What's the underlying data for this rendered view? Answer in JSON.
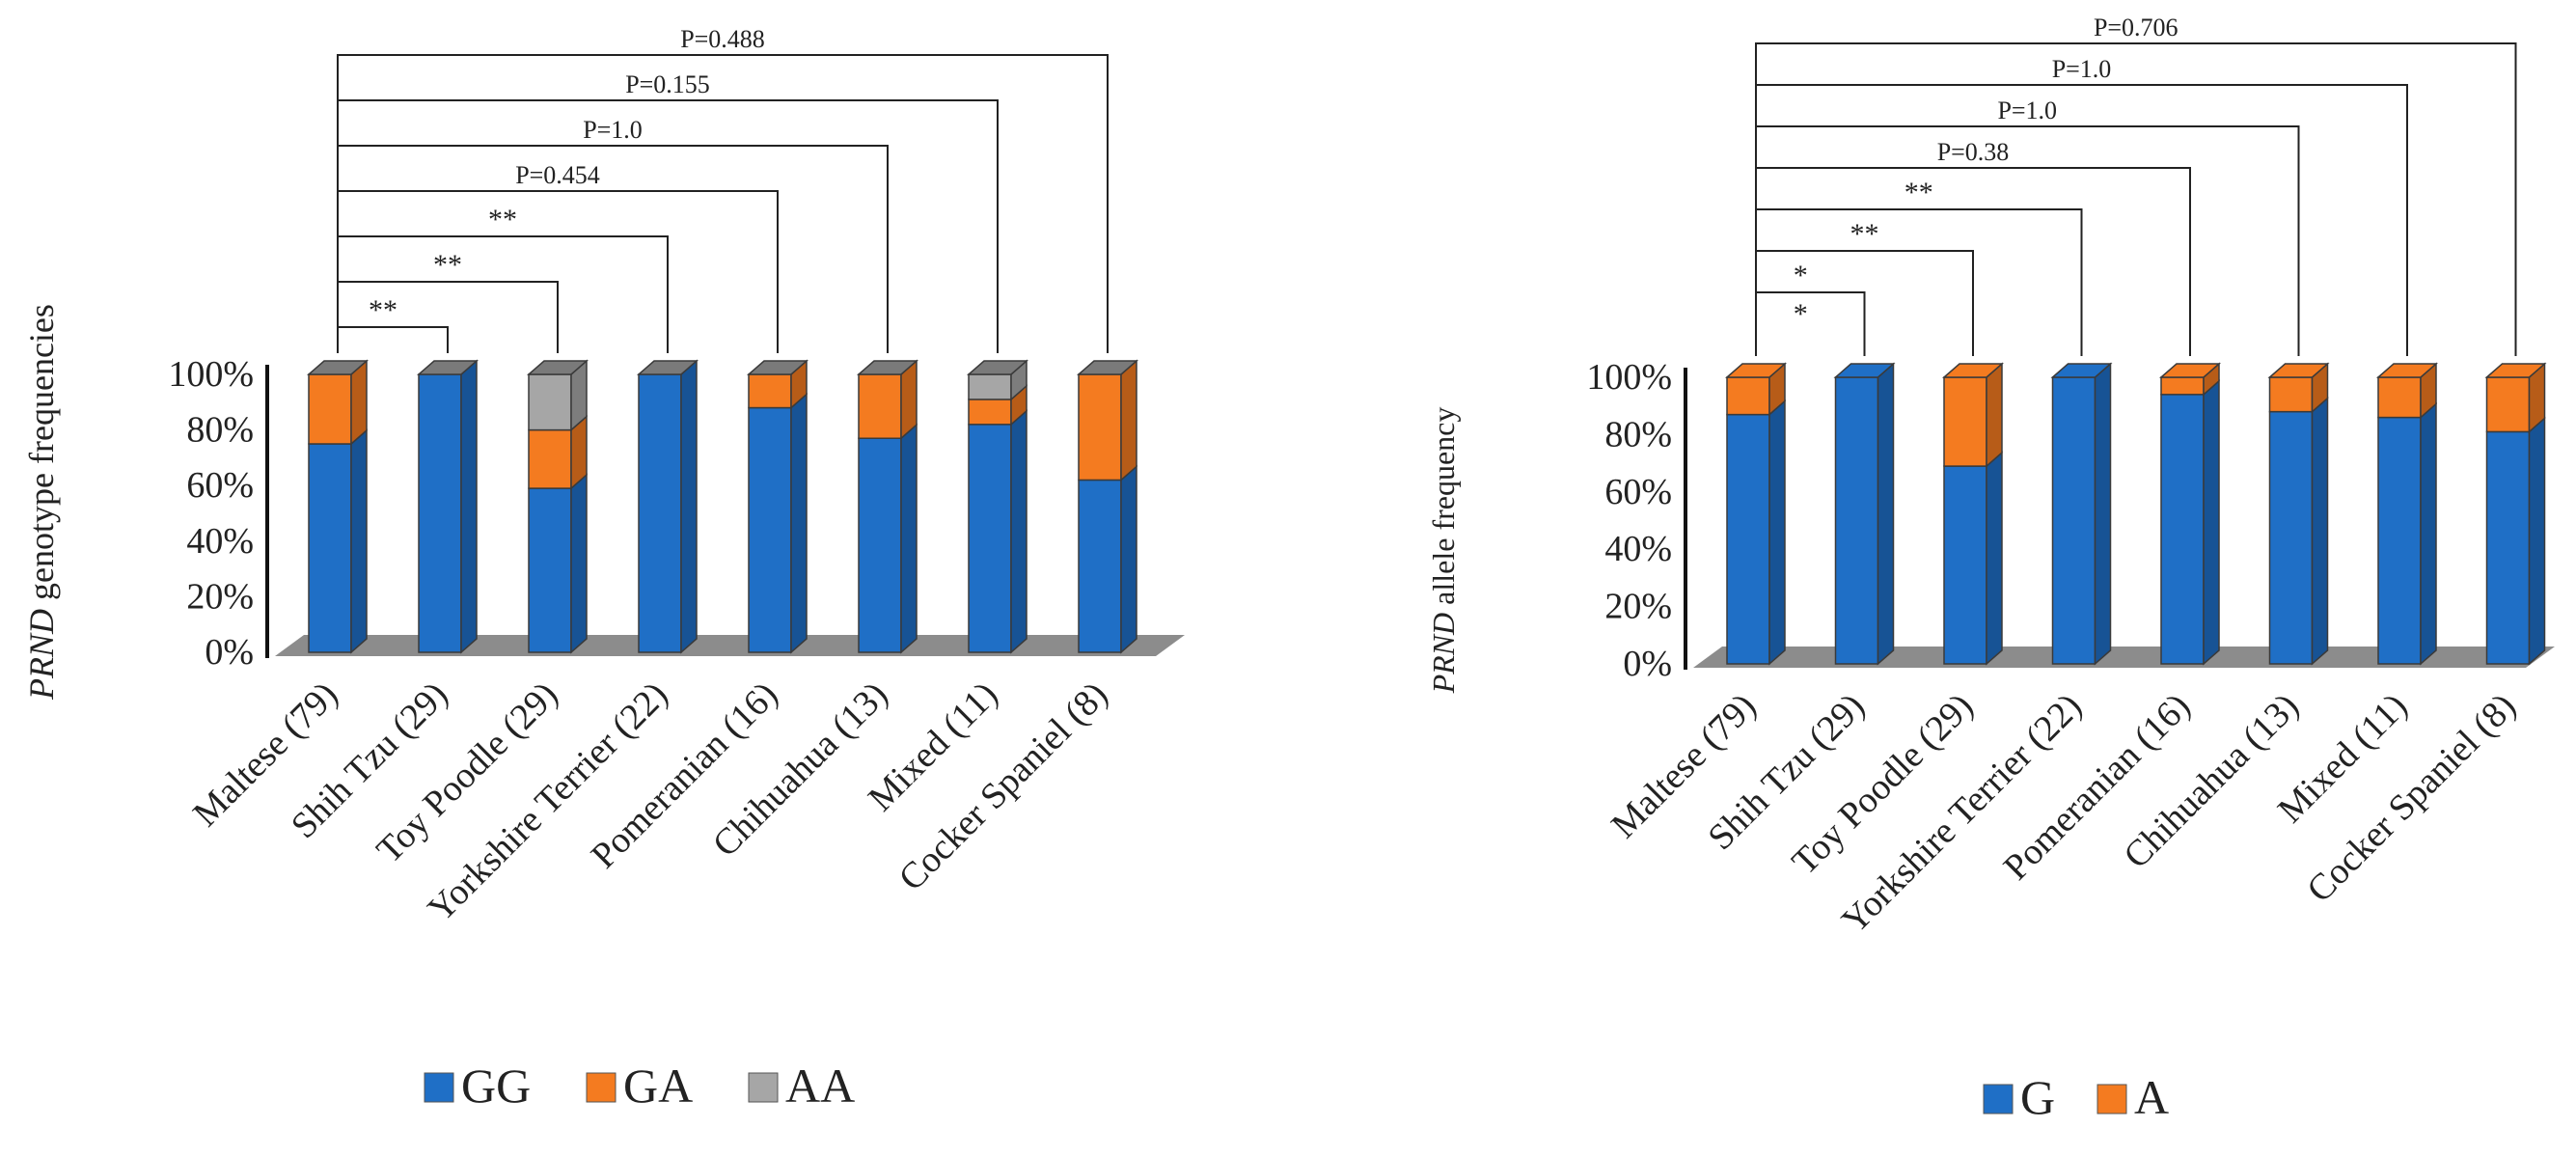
{
  "chart_data": [
    {
      "type": "bar",
      "stacked": true,
      "style": "3d",
      "ylabel_italic": "PRND",
      "ylabel_rest": " genotype frequencies",
      "ylim": [
        0,
        100
      ],
      "yticks": [
        "0%",
        "20%",
        "40%",
        "60%",
        "80%",
        "100%"
      ],
      "categories": [
        "Maltese (79)",
        "Shih Tzu (29)",
        "Toy Poodle (29)",
        "Yorkshire Terrier (22)",
        "Pomeranian (16)",
        "Chihuahua (13)",
        "Mixed (11)",
        "Cocker Spaniel (8)"
      ],
      "series": [
        {
          "name": "GG",
          "color": "#1f6fc6",
          "values": [
            75,
            100,
            59,
            100,
            88,
            77,
            82,
            62
          ]
        },
        {
          "name": "GA",
          "color": "#f47b20",
          "values": [
            25,
            0,
            21,
            0,
            12,
            23,
            9,
            38
          ]
        },
        {
          "name": "AA",
          "color": "#a6a6a6",
          "values": [
            0,
            0,
            20,
            0,
            0,
            0,
            9,
            0
          ]
        }
      ],
      "legend": "bottom",
      "comparisons": [
        {
          "to": 1,
          "label": "**"
        },
        {
          "to": 2,
          "label": "**"
        },
        {
          "to": 3,
          "label": "**"
        },
        {
          "to": 4,
          "label": "P=0.454"
        },
        {
          "to": 5,
          "label": "P=1.0"
        },
        {
          "to": 6,
          "label": "P=0.155"
        },
        {
          "to": 7,
          "label": "P=0.488"
        }
      ]
    },
    {
      "type": "bar",
      "stacked": true,
      "style": "3d",
      "ylabel_italic": "PRND",
      "ylabel_rest": " allele frequency",
      "ylim": [
        0,
        100
      ],
      "yticks": [
        "0%",
        "20%",
        "40%",
        "60%",
        "80%",
        "100%"
      ],
      "categories": [
        "Maltese (79)",
        "Shih Tzu (29)",
        "Toy Poodle (29)",
        "Yorkshire Terrier (22)",
        "Pomeranian (16)",
        "Chihuahua (13)",
        "Mixed (11)",
        "Cocker Spaniel (8)"
      ],
      "series": [
        {
          "name": "G",
          "color": "#1f6fc6",
          "values": [
            87,
            100,
            69,
            100,
            94,
            88,
            86,
            81
          ]
        },
        {
          "name": "A",
          "color": "#f47b20",
          "values": [
            13,
            0,
            31,
            0,
            6,
            12,
            14,
            19
          ]
        }
      ],
      "legend": "bottom",
      "comparisons": [
        {
          "to": 1,
          "label": "*"
        },
        {
          "to": 2,
          "label": "**"
        },
        {
          "to": 3,
          "label": "**"
        },
        {
          "to": 4,
          "label": "P=0.38"
        },
        {
          "to": 5,
          "label": "P=1.0"
        },
        {
          "to": 6,
          "label": "P=1.0"
        },
        {
          "to": 7,
          "label": "P=0.706"
        }
      ],
      "extra_marker": {
        "to": 1,
        "label": "*"
      }
    }
  ]
}
